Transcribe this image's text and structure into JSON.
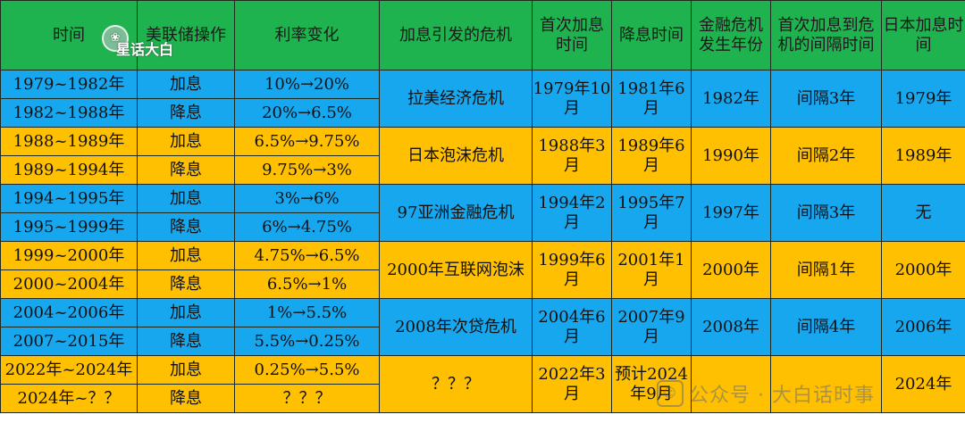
{
  "headers": [
    "时间",
    "美联储操作",
    "利率变化",
    "加息引发的危机",
    "首次加息时间",
    "降息时间",
    "金融危机发生年份",
    "首次加息到危机的间隔时间",
    "日本加息时间"
  ],
  "rows": [
    {
      "time": "1979~1982年",
      "op": "加息",
      "rate": "10%→20%"
    },
    {
      "time": "1982~1988年",
      "op": "降息",
      "rate": "20%→6.5%"
    },
    {
      "time": "1988~1989年",
      "op": "加息",
      "rate": "6.5%→9.75%"
    },
    {
      "time": "1989~1994年",
      "op": "降息",
      "rate": "9.75%→3%"
    },
    {
      "time": "1994~1995年",
      "op": "加息",
      "rate": "3%→6%"
    },
    {
      "time": "1995~1999年",
      "op": "降息",
      "rate": "6%→4.75%"
    },
    {
      "time": "1999~2000年",
      "op": "加息",
      "rate": "4.75%→6.5%"
    },
    {
      "time": "2000~2004年",
      "op": "降息",
      "rate": "6.5%→1%"
    },
    {
      "time": "2004~2006年",
      "op": "加息",
      "rate": "1%→5.5%"
    },
    {
      "time": "2007~2015年",
      "op": "降息",
      "rate": "5.5%→0.25%"
    },
    {
      "time": "2022年~2024年",
      "op": "加息",
      "rate": "0.25%→5.5%"
    },
    {
      "time": "2024年~？？",
      "op": "降息",
      "rate": "？？？"
    }
  ],
  "groups": [
    {
      "crisis": "拉美经济危机",
      "first_hike": "1979年10月",
      "cut": "1981年6月",
      "crisis_year": "1982年",
      "interval": "间隔3年",
      "japan": "1979年"
    },
    {
      "crisis": "日本泡沫危机",
      "first_hike": "1988年3月",
      "cut": "1989年6月",
      "crisis_year": "1990年",
      "interval": "间隔2年",
      "japan": "1989年"
    },
    {
      "crisis": "97亚洲金融危机",
      "first_hike": "1994年2月",
      "cut": "1995年7月",
      "crisis_year": "1997年",
      "interval": "间隔3年",
      "japan": "无"
    },
    {
      "crisis": "2000年互联网泡沫",
      "first_hike": "1999年6月",
      "cut": "2001年1月",
      "crisis_year": "2000年",
      "interval": "间隔1年",
      "japan": "2000年"
    },
    {
      "crisis": "2008年次贷危机",
      "first_hike": "2004年6月",
      "cut": "2007年9月",
      "crisis_year": "2008年",
      "interval": "间隔4年",
      "japan": "2006年"
    },
    {
      "crisis": "？？？",
      "first_hike": "2022年3月",
      "cut": "预计2024年9月",
      "crisis_year": "",
      "interval": "",
      "japan": "2024年"
    }
  ],
  "watermarks": {
    "top": "星话大白",
    "bottom": "公众号 · 大白话时事"
  },
  "colors": {
    "header": "#1fb34f",
    "blue": "#16a7ef",
    "gold": "#fec000"
  }
}
